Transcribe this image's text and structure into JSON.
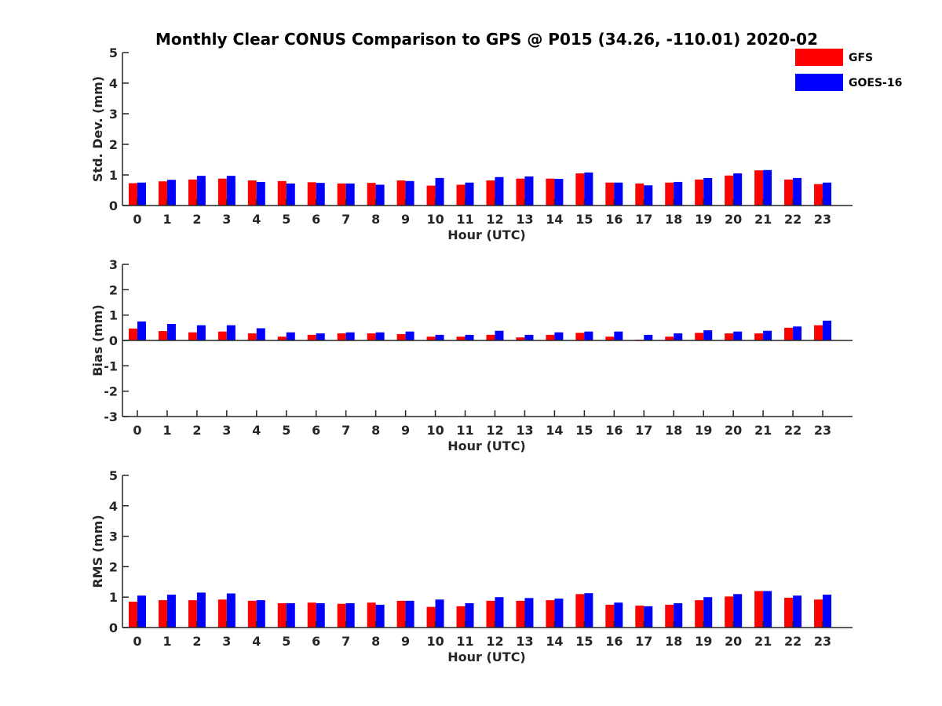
{
  "title": "Monthly Clear CONUS Comparison to GPS @ P015 (34.26, -110.01) 2020-02",
  "legend": [
    {
      "name": "GFS",
      "color": "#ff0000"
    },
    {
      "name": "GOES-16",
      "color": "#0000ff"
    }
  ],
  "chart_data": [
    {
      "type": "bar",
      "title": "Monthly Clear CONUS Comparison to GPS @ P015 (34.26, -110.01) 2020-02",
      "xlabel": "Hour (UTC)",
      "ylabel": "Std. Dev. (mm)",
      "ylim": [
        0,
        5
      ],
      "yticks": [
        0,
        1,
        2,
        3,
        4,
        5
      ],
      "categories": [
        "0",
        "1",
        "2",
        "3",
        "4",
        "5",
        "6",
        "7",
        "8",
        "9",
        "10",
        "11",
        "12",
        "13",
        "14",
        "15",
        "16",
        "17",
        "18",
        "19",
        "20",
        "21",
        "22",
        "23"
      ],
      "series": [
        {
          "name": "GFS",
          "color": "#ff0000",
          "values": [
            0.73,
            0.79,
            0.85,
            0.88,
            0.82,
            0.8,
            0.76,
            0.72,
            0.74,
            0.82,
            0.65,
            0.68,
            0.82,
            0.88,
            0.88,
            1.05,
            0.75,
            0.72,
            0.75,
            0.85,
            0.98,
            1.15,
            0.85,
            0.7
          ]
        },
        {
          "name": "GOES-16",
          "color": "#0000ff",
          "values": [
            0.75,
            0.84,
            0.97,
            0.97,
            0.77,
            0.72,
            0.74,
            0.72,
            0.68,
            0.8,
            0.9,
            0.75,
            0.93,
            0.95,
            0.87,
            1.08,
            0.75,
            0.66,
            0.77,
            0.9,
            1.05,
            1.16,
            0.9,
            0.75
          ]
        }
      ]
    },
    {
      "type": "bar",
      "xlabel": "Hour (UTC)",
      "ylabel": "Bias (mm)",
      "ylim": [
        -3,
        3
      ],
      "yticks": [
        -3,
        -2,
        -1,
        0,
        1,
        2,
        3
      ],
      "categories": [
        "0",
        "1",
        "2",
        "3",
        "4",
        "5",
        "6",
        "7",
        "8",
        "9",
        "10",
        "11",
        "12",
        "13",
        "14",
        "15",
        "16",
        "17",
        "18",
        "19",
        "20",
        "21",
        "22",
        "23"
      ],
      "series": [
        {
          "name": "GFS",
          "color": "#ff0000",
          "values": [
            0.47,
            0.37,
            0.32,
            0.35,
            0.28,
            0.15,
            0.22,
            0.28,
            0.28,
            0.25,
            0.15,
            0.15,
            0.22,
            0.12,
            0.22,
            0.3,
            0.15,
            0.03,
            0.15,
            0.3,
            0.28,
            0.28,
            0.5,
            0.6
          ]
        },
        {
          "name": "GOES-16",
          "color": "#0000ff",
          "values": [
            0.75,
            0.65,
            0.6,
            0.6,
            0.48,
            0.32,
            0.28,
            0.32,
            0.32,
            0.35,
            0.22,
            0.22,
            0.38,
            0.22,
            0.32,
            0.35,
            0.35,
            0.22,
            0.28,
            0.4,
            0.35,
            0.38,
            0.55,
            0.78
          ]
        }
      ]
    },
    {
      "type": "bar",
      "xlabel": "Hour (UTC)",
      "ylabel": "RMS (mm)",
      "ylim": [
        0,
        5
      ],
      "yticks": [
        0,
        1,
        2,
        3,
        4,
        5
      ],
      "categories": [
        "0",
        "1",
        "2",
        "3",
        "4",
        "5",
        "6",
        "7",
        "8",
        "9",
        "10",
        "11",
        "12",
        "13",
        "14",
        "15",
        "16",
        "17",
        "18",
        "19",
        "20",
        "21",
        "22",
        "23"
      ],
      "series": [
        {
          "name": "GFS",
          "color": "#ff0000",
          "values": [
            0.85,
            0.9,
            0.9,
            0.92,
            0.88,
            0.8,
            0.82,
            0.78,
            0.82,
            0.88,
            0.68,
            0.7,
            0.88,
            0.88,
            0.9,
            1.1,
            0.75,
            0.72,
            0.75,
            0.9,
            1.02,
            1.2,
            0.98,
            0.92
          ]
        },
        {
          "name": "GOES-16",
          "color": "#0000ff",
          "values": [
            1.05,
            1.08,
            1.15,
            1.12,
            0.9,
            0.8,
            0.8,
            0.8,
            0.75,
            0.88,
            0.92,
            0.8,
            1.0,
            0.97,
            0.95,
            1.13,
            0.82,
            0.7,
            0.8,
            1.0,
            1.1,
            1.2,
            1.05,
            1.08
          ]
        }
      ]
    }
  ]
}
